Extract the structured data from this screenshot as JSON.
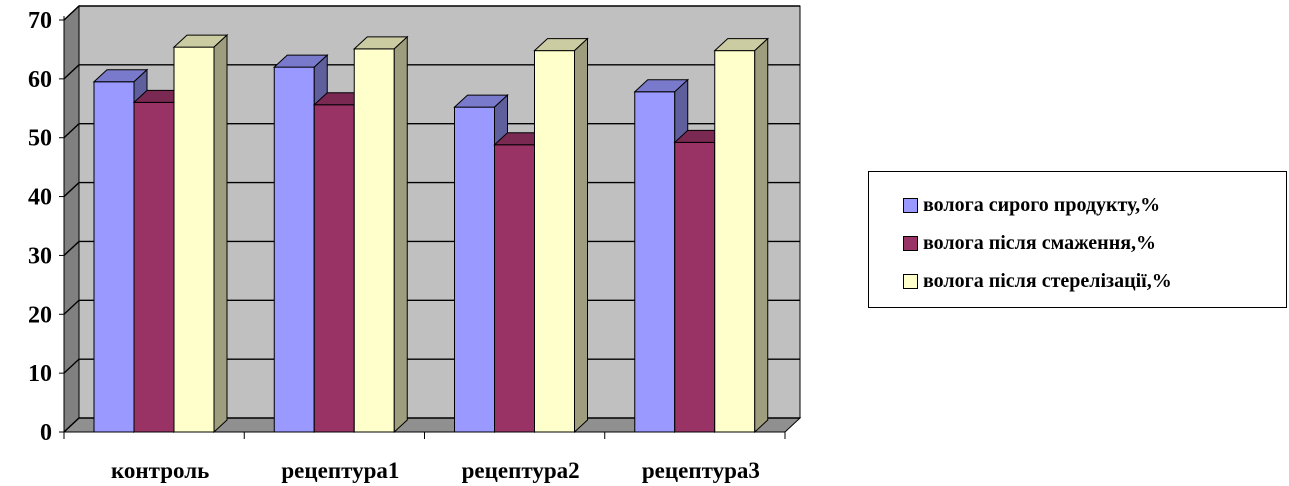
{
  "chart_data": {
    "type": "bar",
    "title": "",
    "xlabel": "",
    "ylabel": "",
    "categories": [
      "контроль",
      "рецептура1",
      "рецептура2",
      "рецептура3"
    ],
    "yticks": [
      "0",
      "10",
      "20",
      "30",
      "40",
      "50",
      "60",
      "70"
    ],
    "ylim": [
      0,
      70
    ],
    "grid": true,
    "legend_position": "right",
    "style": "3d-clustered-column",
    "series": [
      {
        "name": "волога сирого продукту,%",
        "color": "#9999FF",
        "values": [
          59.5,
          62.0,
          55.2,
          57.8
        ]
      },
      {
        "name": "волога після смаження,%",
        "color": "#993366",
        "values": [
          56.0,
          55.6,
          48.8,
          49.2
        ]
      },
      {
        "name": "волога після стерелізації,%",
        "color": "#FFFFCC",
        "values": [
          65.4,
          65.1,
          64.8,
          64.8
        ]
      }
    ]
  }
}
